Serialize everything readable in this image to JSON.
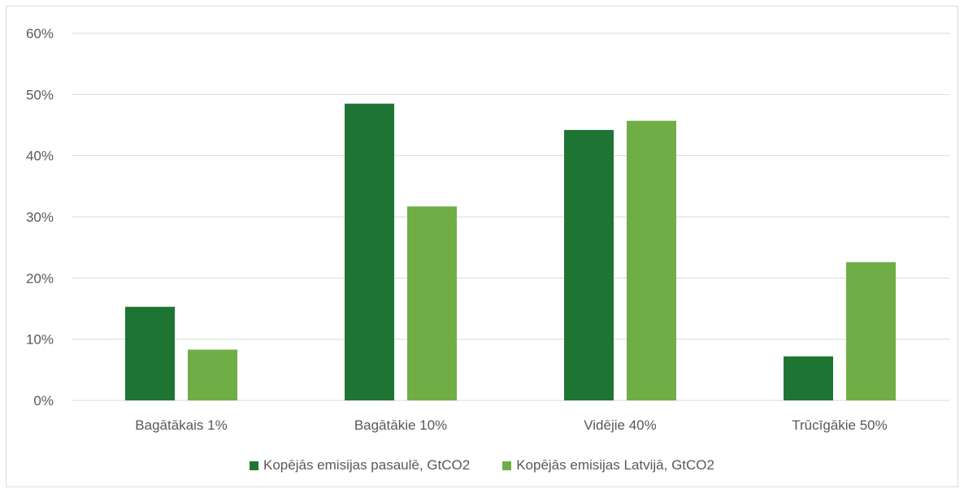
{
  "chart_data": {
    "type": "bar",
    "title": "",
    "xlabel": "",
    "ylabel": "",
    "categories": [
      "Bagātākais 1%",
      "Bagātākie 10%",
      "Vidējie 40%",
      "Trūcīgākie 50%"
    ],
    "series": [
      {
        "name": "Kopējās emisijas pasaulē, GtCO2",
        "color": "#1e7533",
        "values": [
          15.3,
          48.5,
          44.2,
          7.2
        ]
      },
      {
        "name": "Kopējās emisijas Latvijā, GtCO2",
        "color": "#70ad47",
        "values": [
          8.3,
          31.7,
          45.7,
          22.6
        ]
      }
    ],
    "ylim": [
      0,
      60
    ],
    "yticks": [
      "0%",
      "10%",
      "20%",
      "30%",
      "40%",
      "50%",
      "60%"
    ],
    "grid": true,
    "legend_position": "bottom"
  }
}
